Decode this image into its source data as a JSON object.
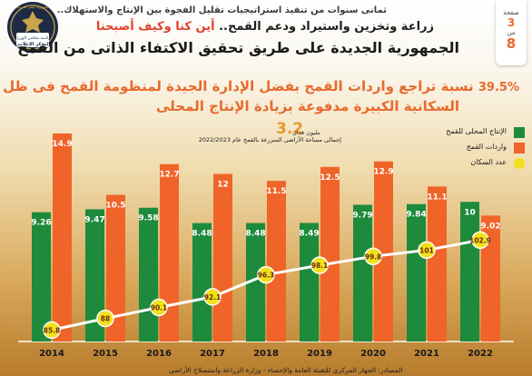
{
  "header": {
    "subheading": "ثمانى سنوات من تنفيذ استراتيجيات تقليل الفجوة بين الإنتاج والاستهلاك..",
    "question_part1": "زراعة وتخزين واستيراد ودعم القمح..",
    "question_part2": "أين كنا وكيف أصبحنا",
    "title": "الجمهورية الجديدة على طريق تحقيق الاكتفاء الذاتى من القمح"
  },
  "page_tab": {
    "page_label": "صفحة",
    "page_number": "3",
    "of_label": "من",
    "total_pages": "8"
  },
  "logo": {
    "top_text": "جمهورية مصر العربية",
    "middle_text": "رئاسة مجلس الوزراء",
    "bottom_text": "المركز الإعلامى",
    "colors": {
      "seal": "#1f2b44",
      "ring": "#c9a54a"
    }
  },
  "headline": {
    "percent": "39.5%",
    "line1_text": "نسبة تراجع واردات القمح بفضل الإدارة الجيدة لمنظومة القمح فى ظل الزيادة",
    "line2_text": "السكانية الكبيرة مدفوعة بزيادة الإنتاج المحلى"
  },
  "annotation": {
    "value": "3.2",
    "unit": "مليون فدان",
    "line1": "إجمالى مساحة الأراضى المنزرعة بالقمح عام 2022/2023"
  },
  "source": "المصادر: الجهاز المركزى للتعبئة العامة والإحصاء - وزارة الزراعة واستصلاح الأراضى",
  "colors": {
    "production": "#1e8a3c",
    "imports": "#f0642a",
    "population": "#f2e01c",
    "population_line": "#ffffff"
  },
  "chart_data": {
    "type": "bar",
    "categories": [
      "2014",
      "2015",
      "2016",
      "2017",
      "2018",
      "2019",
      "2020",
      "2021",
      "2022"
    ],
    "series": [
      {
        "name": "الإنتاج المحلى للقمح",
        "values": [
          9.26,
          9.47,
          9.58,
          8.48,
          8.48,
          8.49,
          9.79,
          9.84,
          10
        ]
      },
      {
        "name": "واردات القمح",
        "values": [
          14.9,
          10.5,
          12.7,
          12,
          11.5,
          12.5,
          12.9,
          11.1,
          9.02
        ]
      },
      {
        "name": "عدد السكان",
        "type": "line",
        "values": [
          85.8,
          88,
          90.1,
          92.1,
          96.3,
          98.1,
          99.8,
          101,
          102.9
        ]
      }
    ],
    "legend": "top-right"
  }
}
